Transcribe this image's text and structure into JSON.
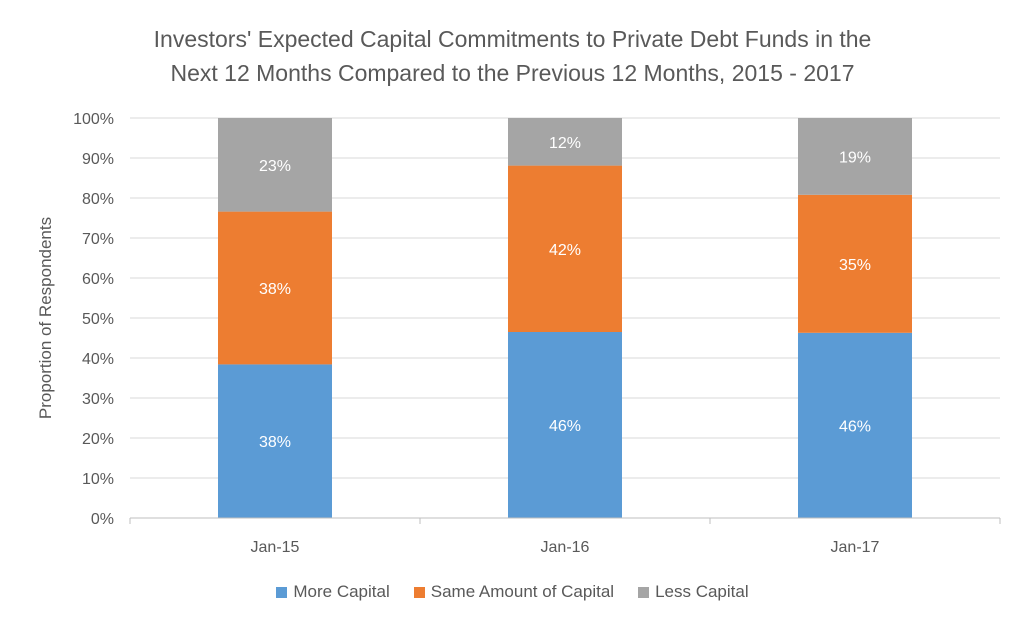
{
  "chart_data": {
    "type": "bar",
    "stacked": true,
    "title_lines": [
      "Investors' Expected Capital Commitments to Private Debt Funds in the",
      "Next 12 Months Compared to the Previous 12 Months, 2015 - 2017"
    ],
    "ylabel": "Proportion of Respondents",
    "xlabel": "",
    "categories": [
      "Jan-15",
      "Jan-16",
      "Jan-17"
    ],
    "yticks": [
      "0%",
      "10%",
      "20%",
      "30%",
      "40%",
      "50%",
      "60%",
      "70%",
      "80%",
      "90%",
      "100%"
    ],
    "ylim": [
      0,
      100
    ],
    "grid": true,
    "legend_position": "bottom",
    "series": [
      {
        "name": "More Capital",
        "color": "#5b9bd5",
        "label_color": "#ffffff",
        "values": [
          38.4,
          46.5,
          46.3
        ],
        "labels": [
          "38%",
          "46%",
          "46%"
        ]
      },
      {
        "name": "Same Amount of Capital",
        "color": "#ed7d31",
        "label_color": "#ffffff",
        "values": [
          38.2,
          41.6,
          34.5
        ],
        "labels": [
          "38%",
          "42%",
          "35%"
        ]
      },
      {
        "name": "Less Capital",
        "color": "#a5a5a5",
        "label_color": "#ffffff",
        "values": [
          23.4,
          11.9,
          19.2
        ],
        "labels": [
          "23%",
          "12%",
          "19%"
        ]
      }
    ]
  }
}
